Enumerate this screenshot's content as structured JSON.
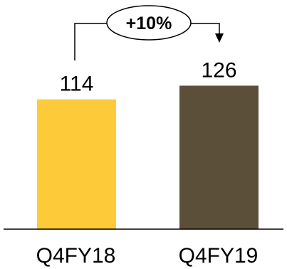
{
  "chart_data": {
    "type": "bar",
    "categories": [
      "Q4FY18",
      "Q4FY19"
    ],
    "values": [
      114,
      126
    ],
    "colors": [
      "#FDCB3A",
      "#5B4F3A"
    ],
    "ylim": [
      0,
      140
    ],
    "grid": false,
    "legend": "none",
    "annotation": {
      "text": "+10%",
      "from": "Q4FY18",
      "to": "Q4FY19"
    }
  }
}
